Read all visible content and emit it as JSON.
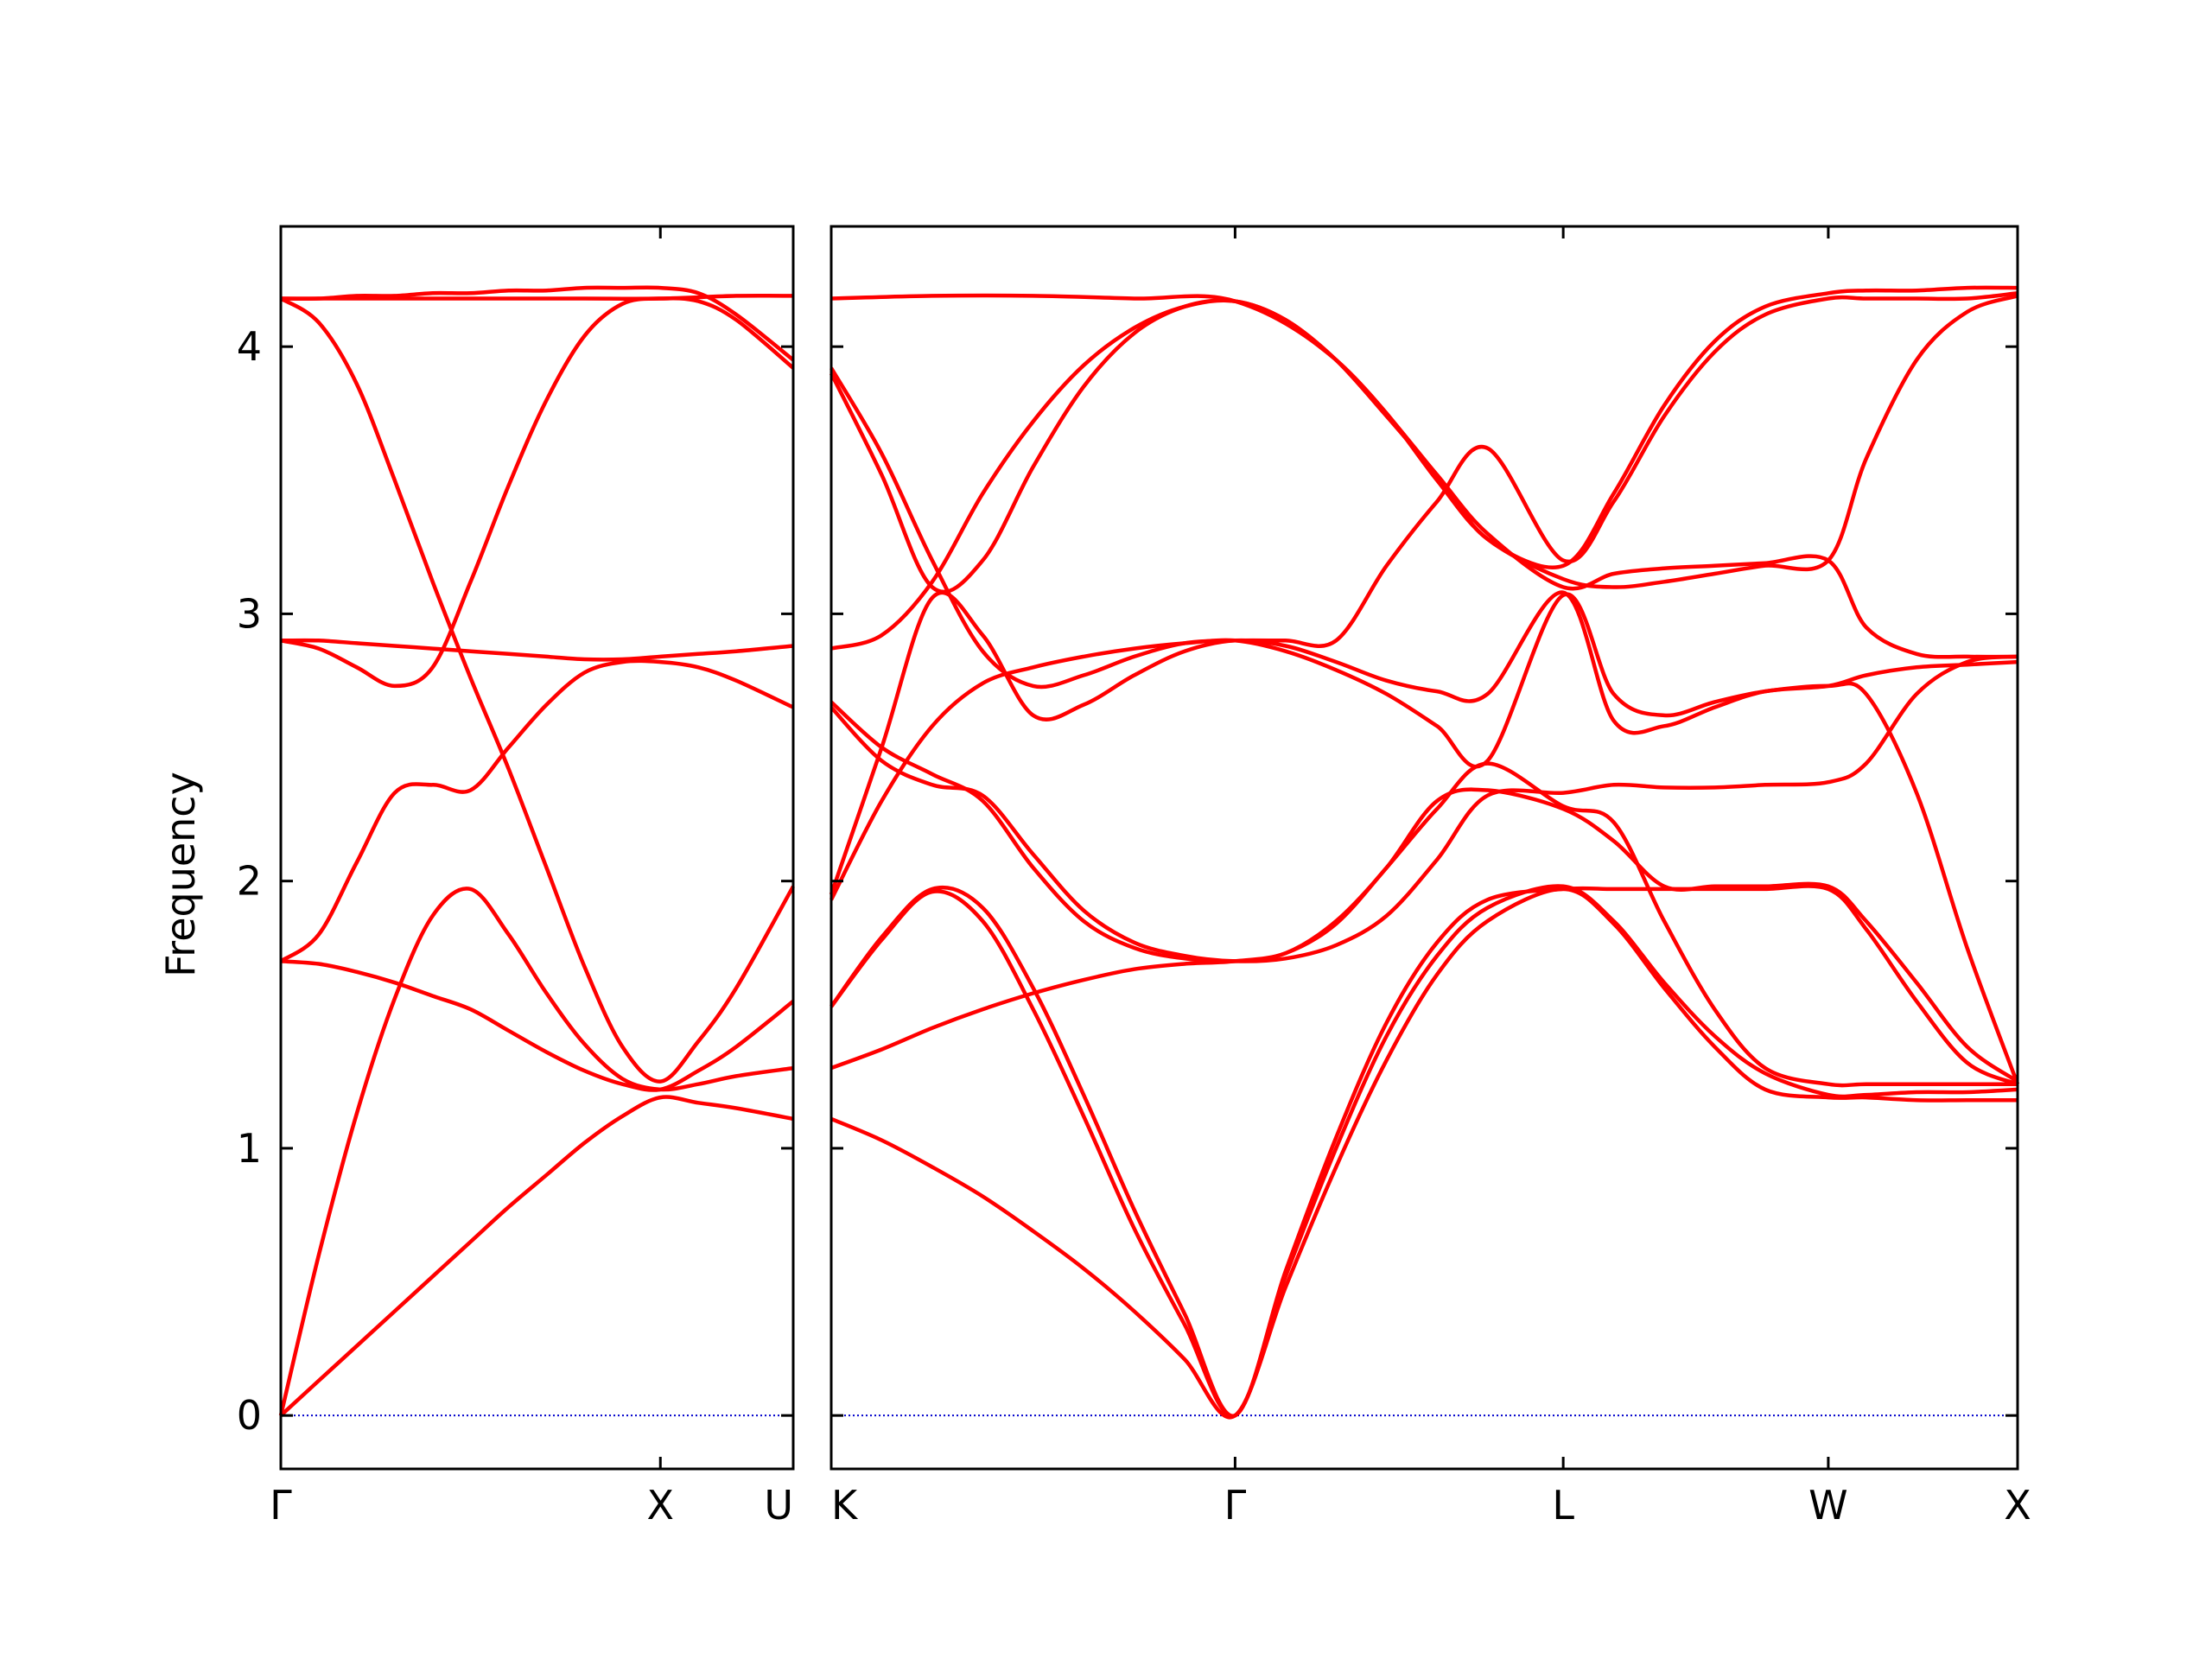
{
  "chart_data": {
    "type": "line",
    "title": "",
    "ylabel": "Frequency",
    "ylim": [
      -0.2,
      4.45
    ],
    "yticks": [
      0,
      1,
      2,
      3,
      4
    ],
    "grid": false,
    "legend": "none",
    "colors": {
      "bands": "#ff0000",
      "zero_line": "#0000cc",
      "axes": "#000000"
    },
    "segments": [
      {
        "id": "gamma-x-u",
        "xlim": [
          0,
          1.35
        ],
        "ticks": [
          {
            "x": 0,
            "label": "Γ",
            "align": "middle"
          },
          {
            "x": 1.0,
            "label": "X",
            "align": "middle"
          },
          {
            "x": 1.35,
            "label": "U",
            "align": "end"
          }
        ],
        "bands": [
          {
            "name": "",
            "x": [
              0,
              0.1,
              0.2,
              0.3,
              0.4,
              0.5,
              0.6,
              0.7,
              0.8,
              0.9,
              1.0,
              1.1,
              1.2,
              1.35
            ],
            "y": [
              0,
              0.13,
              0.26,
              0.39,
              0.52,
              0.65,
              0.78,
              0.9,
              1.02,
              1.12,
              1.19,
              1.17,
              1.15,
              1.11
            ]
          },
          {
            "name": "",
            "x": [
              0,
              0.1,
              0.2,
              0.3,
              0.4,
              0.5,
              0.6,
              0.7,
              0.8,
              0.9,
              1.0,
              1.1,
              1.2,
              1.35
            ],
            "y": [
              0,
              0.6,
              1.13,
              1.56,
              1.87,
              1.97,
              1.8,
              1.58,
              1.39,
              1.26,
              1.22,
              1.24,
              1.27,
              1.3
            ]
          },
          {
            "name": "",
            "x": [
              0,
              0.1,
              0.2,
              0.3,
              0.4,
              0.5,
              0.6,
              0.7,
              0.8,
              0.9,
              1.0,
              1.1,
              1.2,
              1.35
            ],
            "y": [
              1.7,
              1.69,
              1.66,
              1.62,
              1.57,
              1.52,
              1.44,
              1.36,
              1.29,
              1.24,
              1.22,
              1.29,
              1.38,
              1.55
            ]
          },
          {
            "name": "",
            "x": [
              0,
              0.1,
              0.2,
              0.3,
              0.4,
              0.5,
              0.6,
              0.7,
              0.8,
              0.9,
              1.0,
              1.1,
              1.2,
              1.35
            ],
            "y": [
              1.7,
              1.8,
              2.07,
              2.33,
              2.36,
              2.34,
              2.5,
              2.66,
              2.78,
              2.82,
              2.82,
              2.8,
              2.75,
              2.65
            ]
          },
          {
            "name": "",
            "x": [
              0,
              0.1,
              0.2,
              0.3,
              0.4,
              0.5,
              0.6,
              0.7,
              0.8,
              0.9,
              1.0,
              1.1,
              1.2,
              1.35
            ],
            "y": [
              2.9,
              2.87,
              2.8,
              2.73,
              2.8,
              3.12,
              3.48,
              3.8,
              4.04,
              4.16,
              4.18,
              4.17,
              4.1,
              3.92
            ]
          },
          {
            "name": "",
            "x": [
              0,
              0.1,
              0.2,
              0.3,
              0.4,
              0.5,
              0.6,
              0.7,
              0.8,
              0.9,
              1.0,
              1.1,
              1.2,
              1.35
            ],
            "y": [
              2.9,
              2.9,
              2.89,
              2.88,
              2.87,
              2.86,
              2.85,
              2.84,
              2.83,
              2.83,
              2.84,
              2.85,
              2.86,
              2.88
            ]
          },
          {
            "name": "",
            "x": [
              0,
              0.1,
              0.2,
              0.3,
              0.4,
              0.5,
              0.6,
              0.7,
              0.8,
              0.9,
              1.0,
              1.1,
              1.2,
              1.35
            ],
            "y": [
              4.18,
              4.09,
              3.86,
              3.5,
              3.12,
              2.76,
              2.42,
              2.05,
              1.68,
              1.38,
              1.25,
              1.4,
              1.6,
              1.98
            ]
          },
          {
            "name": "",
            "x": [
              0,
              0.1,
              0.2,
              0.3,
              0.4,
              0.5,
              0.6,
              0.7,
              0.8,
              0.9,
              1.0,
              1.1,
              1.2,
              1.35
            ],
            "y": [
              4.18,
              4.18,
              4.19,
              4.19,
              4.2,
              4.2,
              4.21,
              4.21,
              4.22,
              4.22,
              4.22,
              4.2,
              4.12,
              3.95
            ]
          },
          {
            "name": "",
            "x": [
              0,
              0.2,
              0.4,
              0.6,
              0.8,
              1.0,
              1.2,
              1.35
            ],
            "y": [
              4.18,
              4.18,
              4.18,
              4.18,
              4.18,
              4.18,
              4.19,
              4.19
            ]
          }
        ]
      },
      {
        "id": "k-gamma-l-w-x",
        "xlim": [
          0,
          4.7
        ],
        "ticks": [
          {
            "x": 0,
            "label": "K",
            "align": "start"
          },
          {
            "x": 1.6,
            "label": "Γ",
            "align": "middle"
          },
          {
            "x": 2.9,
            "label": "L",
            "align": "middle"
          },
          {
            "x": 3.95,
            "label": "W",
            "align": "middle"
          },
          {
            "x": 4.7,
            "label": "X",
            "align": "middle"
          }
        ],
        "bands": [
          {
            "name": "",
            "x": [
              0,
              0.2,
              0.4,
              0.6,
              0.8,
              1.0,
              1.2,
              1.4,
              1.6,
              1.8,
              2.0,
              2.2,
              2.4,
              2.6,
              2.9,
              3.1,
              3.3,
              3.5,
              3.7,
              3.95,
              4.1,
              4.3,
              4.5,
              4.7
            ],
            "y": [
              1.11,
              1.03,
              0.93,
              0.82,
              0.69,
              0.55,
              0.39,
              0.21,
              0,
              0.48,
              0.93,
              1.33,
              1.65,
              1.85,
              1.97,
              1.84,
              1.6,
              1.38,
              1.22,
              1.19,
              1.19,
              1.18,
              1.18,
              1.18
            ]
          },
          {
            "name": "",
            "x": [
              0,
              0.2,
              0.4,
              0.6,
              0.8,
              1.0,
              1.2,
              1.4,
              1.6,
              1.8,
              2.0,
              2.2,
              2.4,
              2.6,
              2.9,
              3.1,
              3.3,
              3.5,
              3.7,
              3.95,
              4.1,
              4.3,
              4.5,
              4.7
            ],
            "y": [
              1.53,
              1.78,
              1.96,
              1.85,
              1.52,
              1.12,
              0.7,
              0.34,
              0,
              0.52,
              1.0,
              1.42,
              1.72,
              1.9,
              1.98,
              1.85,
              1.62,
              1.42,
              1.28,
              1.2,
              1.2,
              1.21,
              1.21,
              1.22
            ]
          },
          {
            "name": "",
            "x": [
              0,
              0.2,
              0.4,
              0.6,
              0.8,
              1.0,
              1.2,
              1.4,
              1.6,
              1.8,
              2.0,
              2.2,
              2.4,
              2.6,
              2.9,
              3.1,
              3.3,
              3.5,
              3.7,
              3.95,
              4.1,
              4.3,
              4.5,
              4.7
            ],
            "y": [
              1.53,
              1.79,
              1.97,
              1.9,
              1.6,
              1.2,
              0.77,
              0.38,
              0,
              0.54,
              1.04,
              1.47,
              1.77,
              1.93,
              1.97,
              1.97,
              1.97,
              1.97,
              1.97,
              1.97,
              1.82,
              1.55,
              1.32,
              1.24
            ]
          },
          {
            "name": "",
            "x": [
              0,
              0.2,
              0.4,
              0.6,
              0.8,
              1.0,
              1.2,
              1.4,
              1.6,
              1.8,
              2.0,
              2.2,
              2.4,
              2.6,
              2.9,
              3.1,
              3.3,
              3.5,
              3.7,
              3.95,
              4.1,
              4.3,
              4.5,
              4.7
            ],
            "y": [
              1.3,
              1.37,
              1.45,
              1.52,
              1.58,
              1.63,
              1.67,
              1.69,
              1.7,
              1.73,
              1.84,
              2.05,
              2.27,
              2.44,
              2.28,
              2.22,
              1.85,
              1.52,
              1.3,
              1.24,
              1.24,
              1.24,
              1.24,
              1.24
            ]
          },
          {
            "name": "",
            "x": [
              0,
              0.2,
              0.4,
              0.6,
              0.8,
              1.0,
              1.2,
              1.4,
              1.6,
              1.8,
              2.0,
              2.2,
              2.4,
              2.6,
              2.9,
              3.1,
              3.3,
              3.5,
              3.7,
              3.95,
              4.1,
              4.3,
              4.5,
              4.7
            ],
            "y": [
              1.93,
              2.3,
              2.58,
              2.74,
              2.8,
              2.84,
              2.87,
              2.89,
              2.9,
              2.86,
              2.79,
              2.7,
              2.58,
              2.45,
              3.07,
              2.7,
              2.62,
              2.67,
              2.71,
              2.73,
              2.7,
              2.33,
              1.75,
              1.24
            ]
          },
          {
            "name": "",
            "x": [
              0,
              0.2,
              0.4,
              0.6,
              0.8,
              1.0,
              1.2,
              1.4,
              1.6,
              1.8,
              2.0,
              2.2,
              2.4,
              2.6,
              2.9,
              3.1,
              3.3,
              3.5,
              3.7,
              3.95,
              4.1,
              4.3,
              4.5,
              4.7
            ],
            "y": [
              1.95,
              2.5,
              3.06,
              2.92,
              2.62,
              2.66,
              2.77,
              2.86,
              2.9,
              2.88,
              2.82,
              2.75,
              2.71,
              2.7,
              3.08,
              2.6,
              2.58,
              2.65,
              2.71,
              2.73,
              2.77,
              2.8,
              2.81,
              2.82
            ]
          },
          {
            "name": "",
            "x": [
              0,
              0.2,
              0.4,
              0.6,
              0.8,
              1.0,
              1.2,
              1.4,
              1.6,
              1.8,
              2.0,
              2.2,
              2.4,
              2.6,
              2.9,
              3.1,
              3.3,
              3.5,
              3.7,
              3.95,
              4.1,
              4.3,
              4.5,
              4.7
            ],
            "y": [
              2.65,
              2.45,
              2.36,
              2.32,
              2.1,
              1.89,
              1.77,
              1.72,
              1.7,
              1.71,
              1.76,
              1.87,
              2.08,
              2.32,
              2.33,
              2.36,
              2.35,
              2.35,
              2.36,
              2.37,
              2.44,
              2.7,
              2.82,
              2.84
            ]
          },
          {
            "name": "",
            "x": [
              0,
              0.2,
              0.4,
              0.6,
              0.8,
              1.0,
              1.2,
              1.4,
              1.6,
              1.8,
              2.0,
              2.2,
              2.4,
              2.6,
              2.9,
              3.1,
              3.3,
              3.5,
              3.7,
              3.95,
              4.1,
              4.3,
              4.5,
              4.7
            ],
            "y": [
              2.67,
              2.5,
              2.4,
              2.3,
              2.05,
              1.85,
              1.75,
              1.71,
              1.7,
              1.73,
              1.85,
              2.05,
              2.3,
              2.34,
              2.27,
              2.15,
              1.98,
              1.98,
              1.98,
              1.98,
              1.85,
              1.62,
              1.38,
              1.25
            ]
          },
          {
            "name": "",
            "x": [
              0,
              0.2,
              0.4,
              0.6,
              0.8,
              1.0,
              1.2,
              1.4,
              1.6,
              1.8,
              2.0,
              2.2,
              2.4,
              2.6,
              2.9,
              3.1,
              3.3,
              3.5,
              3.7,
              3.95,
              4.1,
              4.3,
              4.5,
              4.7
            ],
            "y": [
              2.87,
              2.92,
              3.12,
              3.45,
              3.72,
              3.93,
              4.07,
              4.15,
              4.17,
              4.1,
              3.95,
              3.74,
              3.52,
              3.3,
              3.1,
              3.15,
              3.17,
              3.18,
              3.19,
              3.2,
              2.95,
              2.85,
              2.84,
              2.84
            ]
          },
          {
            "name": "",
            "x": [
              0,
              0.2,
              0.4,
              0.6,
              0.8,
              1.0,
              1.2,
              1.4,
              1.6,
              1.8,
              2.0,
              2.2,
              2.4,
              2.6,
              2.9,
              3.1,
              3.3,
              3.5,
              3.7,
              3.95,
              4.1,
              4.3,
              4.5,
              4.7
            ],
            "y": [
              3.9,
              3.52,
              3.1,
              3.2,
              3.55,
              3.85,
              4.05,
              4.15,
              4.17,
              4.1,
              3.95,
              3.75,
              3.5,
              3.28,
              3.13,
              3.1,
              3.12,
              3.15,
              3.18,
              3.2,
              3.58,
              3.95,
              4.13,
              4.19
            ]
          },
          {
            "name": "",
            "x": [
              0,
              0.2,
              0.4,
              0.6,
              0.8,
              1.0,
              1.2,
              1.4,
              1.6,
              1.8,
              2.0,
              2.2,
              2.4,
              2.6,
              2.9,
              3.1,
              3.3,
              3.5,
              3.7,
              3.95,
              4.1,
              4.3,
              4.5,
              4.7
            ],
            "y": [
              3.92,
              3.6,
              3.2,
              2.86,
              2.73,
              2.77,
              2.84,
              2.89,
              2.9,
              2.9,
              2.9,
              3.18,
              3.42,
              3.62,
              3.2,
              3.42,
              3.74,
              3.98,
              4.12,
              4.18,
              4.18,
              4.18,
              4.18,
              4.2
            ]
          },
          {
            "name": "",
            "x": [
              0,
              0.4,
              0.8,
              1.2,
              1.6,
              2.0,
              2.4,
              2.6,
              2.9,
              3.1,
              3.3,
              3.5,
              3.7,
              3.95,
              4.1,
              4.3,
              4.5,
              4.7
            ],
            "y": [
              4.18,
              4.19,
              4.19,
              4.18,
              4.17,
              3.95,
              3.52,
              3.28,
              3.18,
              3.45,
              3.78,
              4.02,
              4.15,
              4.2,
              4.21,
              4.21,
              4.22,
              4.22
            ]
          }
        ]
      }
    ]
  }
}
